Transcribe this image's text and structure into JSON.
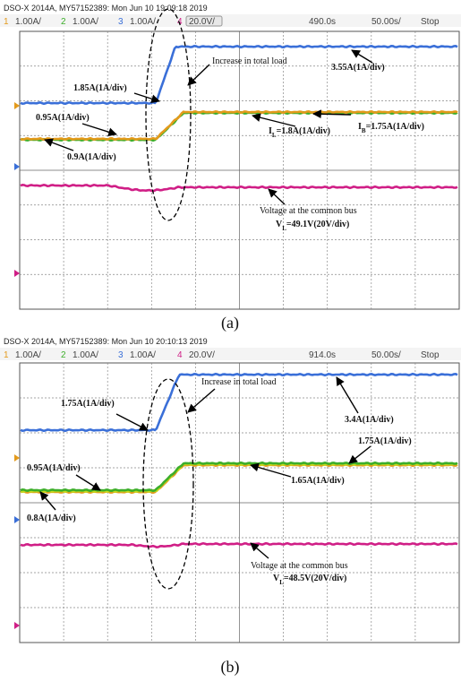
{
  "panels": [
    {
      "header": "DSO-X 2014A, MY57152389: Mon Jun 10 19:09:18 2019",
      "channels": [
        {
          "number": "1",
          "scale": "1.00A/"
        },
        {
          "number": "2",
          "scale": "1.00A/"
        },
        {
          "number": "3",
          "scale": "1.00A/"
        },
        {
          "number": "4",
          "scale": "20.0V/"
        }
      ],
      "time_position": "490.0s",
      "time_scale": "50.00s/",
      "status": "Stop",
      "annotations": [
        {
          "text": "1.85A(1A/div)"
        },
        {
          "text": "Increase in total load",
          "plain": true
        },
        {
          "text": "3.55A(1A/div)"
        },
        {
          "text": "0.95A(1A/div)"
        },
        {
          "parts": [
            "I",
            "L",
            "=1.8A(1A/div)"
          ]
        },
        {
          "parts": [
            "I",
            "B",
            "=1.75A(1A/div)"
          ]
        },
        {
          "text": "0.9A(1A/div)"
        },
        {
          "text": "Voltage at the common bus",
          "plain": true
        },
        {
          "parts": [
            "V",
            "L",
            "=49.1V(20V/div)"
          ]
        }
      ],
      "caption": "(a)"
    },
    {
      "header": "DSO-X 2014A, MY57152389: Mon Jun 10 20:10:13 2019",
      "channels": [
        {
          "number": "1",
          "scale": "1.00A/"
        },
        {
          "number": "2",
          "scale": "1.00A/"
        },
        {
          "number": "3",
          "scale": "1.00A/"
        },
        {
          "number": "4",
          "scale": "20.0V/"
        }
      ],
      "time_position": "914.0s",
      "time_scale": "50.00s/",
      "status": "Stop",
      "annotations": [
        {
          "text": "1.75A(1A/div)"
        },
        {
          "text": "Increase in total load",
          "plain": true
        },
        {
          "text": "3.4A(1A/div)"
        },
        {
          "text": "1.75A(1A/div)"
        },
        {
          "text": "0.95A(1A/div)"
        },
        {
          "text": "1.65A(1A/div)"
        },
        {
          "text": "0.8A(1A/div)"
        },
        {
          "text": "Voltage at the common bus",
          "plain": true
        },
        {
          "parts": [
            "V",
            "L",
            "=48.5V(20V/div)"
          ]
        }
      ],
      "caption": "(b)"
    }
  ]
}
